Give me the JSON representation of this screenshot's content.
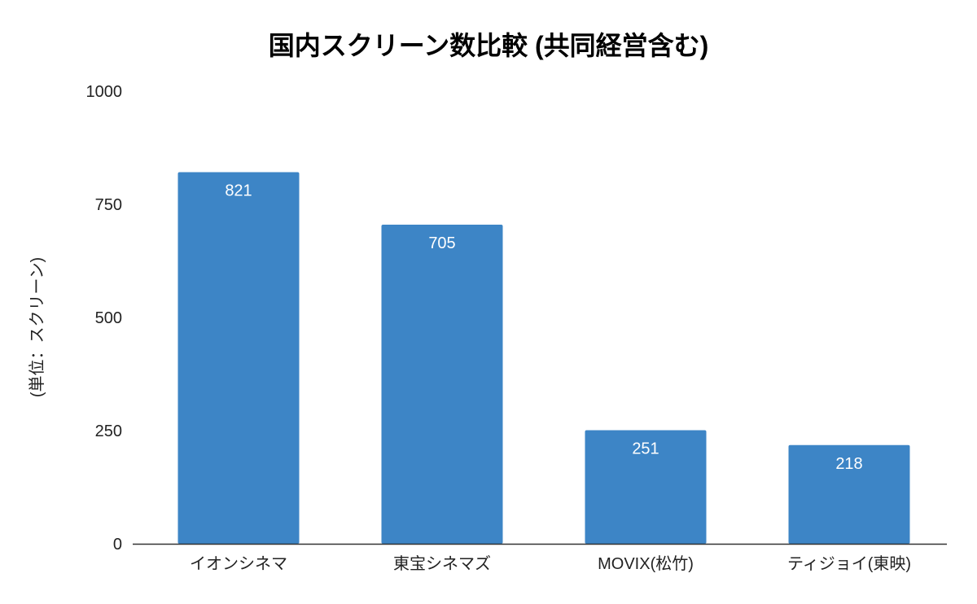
{
  "chart_data": {
    "type": "bar",
    "title": "国内スクリーン数比較 (共同経営含む)",
    "xlabel": "",
    "ylabel": "(単位：スクリーン)",
    "categories": [
      "イオンシネマ",
      "東宝シネマズ",
      "MOVIX(松竹)",
      "ティジョイ(東映)"
    ],
    "values": [
      821,
      705,
      251,
      218
    ],
    "data_labels": [
      "821",
      "705",
      "251",
      "218"
    ],
    "ylim": [
      0,
      1000
    ],
    "yticks": [
      0,
      250,
      500,
      750,
      1000
    ],
    "ytick_labels": [
      "0",
      "250",
      "500",
      "750",
      "1000"
    ],
    "grid": false,
    "legend": "none",
    "bar_color": "#3d85c6"
  }
}
